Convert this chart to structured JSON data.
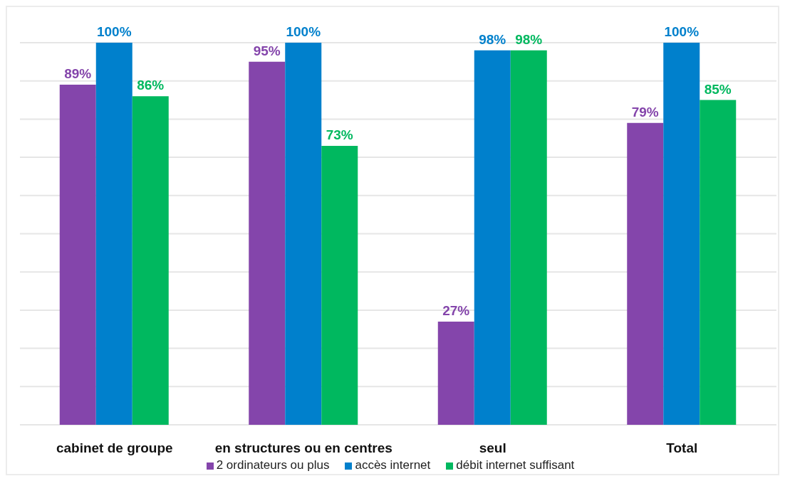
{
  "chart_data": {
    "type": "bar",
    "categories": [
      "cabinet de groupe",
      "en structures ou en centres",
      "seul",
      "Total"
    ],
    "series": [
      {
        "name": "2 ordinateurs ou plus",
        "color": "#8445ab",
        "values": [
          89,
          95,
          27,
          79
        ],
        "value_labels": [
          "89%",
          "95%",
          "27%",
          "79%"
        ]
      },
      {
        "name": "accès internet",
        "color": "#0080cc",
        "values": [
          100,
          100,
          98,
          100
        ],
        "value_labels": [
          "100%",
          "100%",
          "98%",
          "100%"
        ]
      },
      {
        "name": "débit internet suffisant",
        "color": "#00b85f",
        "values": [
          86,
          73,
          98,
          85
        ],
        "value_labels": [
          "86%",
          "73%",
          "98%",
          "85%"
        ]
      }
    ],
    "ylim": [
      0,
      100
    ],
    "yticks": [
      {
        "value": 0,
        "label": null
      },
      {
        "value": 10,
        "label": null
      },
      {
        "value": 20,
        "label": null
      },
      {
        "value": 30,
        "label": null
      },
      {
        "value": 40,
        "label": null
      },
      {
        "value": 50,
        "label": null
      },
      {
        "value": 60,
        "label": null
      },
      {
        "value": 70,
        "label": null
      },
      {
        "value": 80,
        "label": null
      },
      {
        "value": 90,
        "label": null
      },
      {
        "value": 100,
        "label": null
      }
    ],
    "tick_labels": "x",
    "grid": "y",
    "legend": "bottom"
  }
}
